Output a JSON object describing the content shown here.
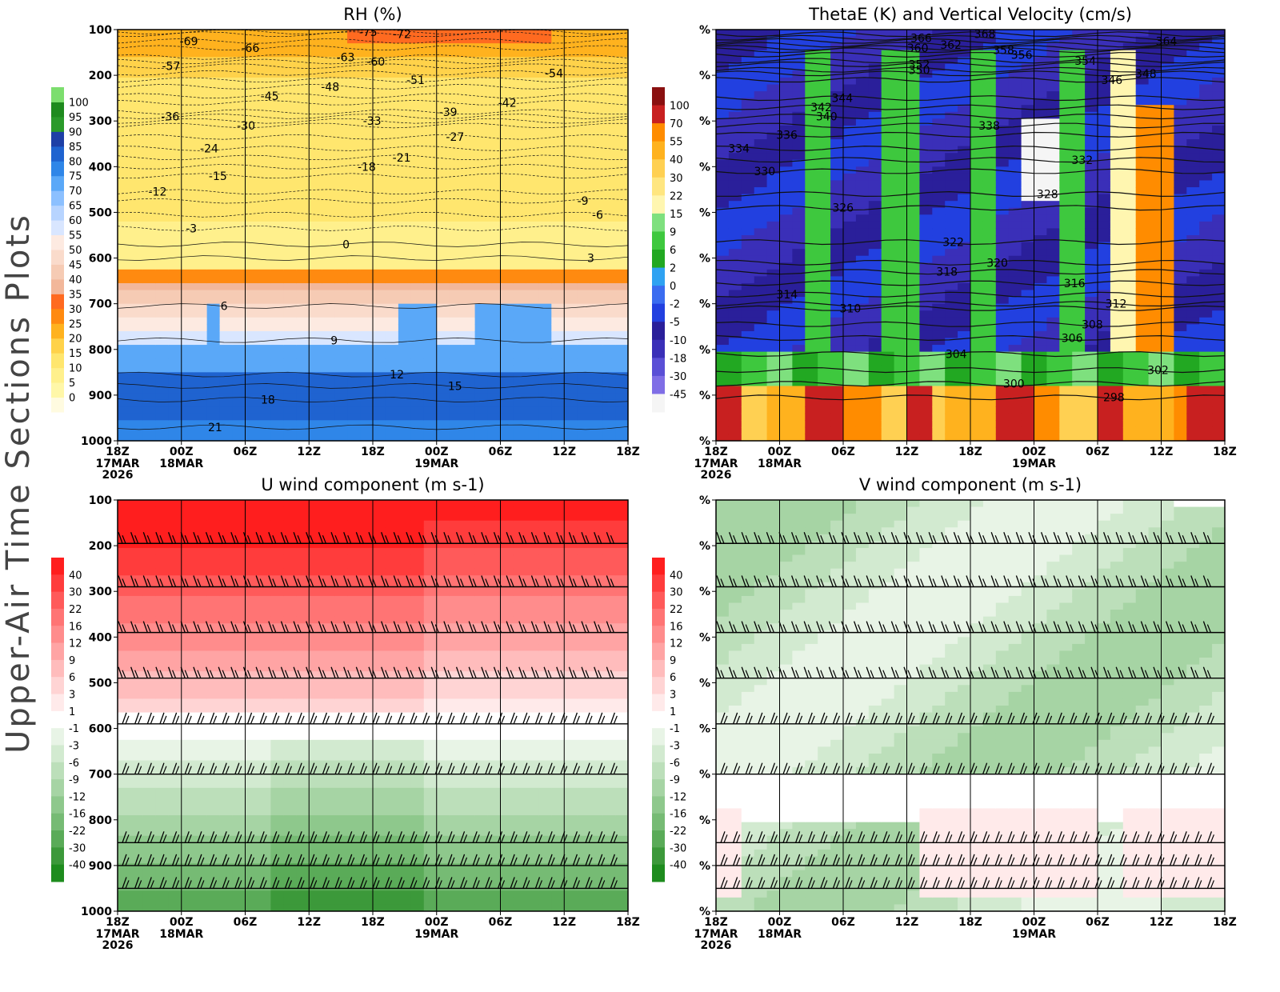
{
  "page": {
    "side_title": "Upper-Air Time Sections Plots"
  },
  "time_axis": {
    "ticks": [
      "18Z",
      "00Z",
      "06Z",
      "12Z",
      "18Z",
      "00Z",
      "06Z",
      "12Z",
      "18Z"
    ],
    "date_labels": [
      {
        "tick_index": 0,
        "lines": [
          "17MAR",
          "2026"
        ]
      },
      {
        "tick_index": 1,
        "lines": [
          "18MAR"
        ]
      },
      {
        "tick_index": 5,
        "lines": [
          "19MAR"
        ]
      }
    ]
  },
  "chart_data": [
    {
      "id": "rh",
      "type": "heatmap",
      "title": "RH (%)",
      "y_ticks": [
        "100",
        "200",
        "300",
        "400",
        "500",
        "600",
        "700",
        "800",
        "900",
        "1000"
      ],
      "ylim": [
        1000,
        100
      ],
      "colorbar": {
        "side": "left",
        "labels": [
          "0",
          "5",
          "10",
          "15",
          "20",
          "25",
          "30",
          "35",
          "40",
          "45",
          "50",
          "55",
          "60",
          "65",
          "70",
          "75",
          "80",
          "85",
          "90",
          "95",
          "100"
        ],
        "colors": [
          "#fffbe0",
          "#fff7a8",
          "#fff08c",
          "#ffe66e",
          "#ffd24a",
          "#ffb21e",
          "#ff8a10",
          "#ff6a20",
          "#f2b79a",
          "#f6cbb4",
          "#fadbcb",
          "#fdeae1",
          "#d9e6ff",
          "#b7d4ff",
          "#8cc0ff",
          "#5aa8f8",
          "#2f86e8",
          "#1f63d0",
          "#1e3fa6",
          "#2a9a2a",
          "#1e8a1e",
          "#7cde6e"
        ]
      },
      "temperature_contours": [
        {
          "label": "-75",
          "pressure": 105
        },
        {
          "label": "-72",
          "pressure": 110
        },
        {
          "label": "-69",
          "pressure": 125
        },
        {
          "label": "-66",
          "pressure": 140
        },
        {
          "label": "-63",
          "pressure": 160
        },
        {
          "label": "-60",
          "pressure": 170
        },
        {
          "label": "-57",
          "pressure": 180
        },
        {
          "label": "-54",
          "pressure": 195
        },
        {
          "label": "-51",
          "pressure": 210
        },
        {
          "label": "-48",
          "pressure": 225
        },
        {
          "label": "-45",
          "pressure": 245
        },
        {
          "label": "-42",
          "pressure": 260
        },
        {
          "label": "-39",
          "pressure": 280
        },
        {
          "label": "-36",
          "pressure": 290
        },
        {
          "label": "-33",
          "pressure": 300
        },
        {
          "label": "-30",
          "pressure": 310
        },
        {
          "label": "-27",
          "pressure": 335
        },
        {
          "label": "-24",
          "pressure": 360
        },
        {
          "label": "-21",
          "pressure": 380
        },
        {
          "label": "-18",
          "pressure": 400
        },
        {
          "label": "-15",
          "pressure": 420
        },
        {
          "label": "-12",
          "pressure": 455
        },
        {
          "label": "-9",
          "pressure": 475
        },
        {
          "label": "-6",
          "pressure": 505
        },
        {
          "label": "-3",
          "pressure": 535
        },
        {
          "label": "0",
          "pressure": 570
        },
        {
          "label": "3",
          "pressure": 600
        },
        {
          "label": "6",
          "pressure": 705
        },
        {
          "label": "9",
          "pressure": 780
        },
        {
          "label": "12",
          "pressure": 855
        },
        {
          "label": "15",
          "pressure": 880
        },
        {
          "label": "18",
          "pressure": 910
        },
        {
          "label": "21",
          "pressure": 970
        }
      ]
    },
    {
      "id": "thetae",
      "type": "heatmap",
      "title": "ThetaE (K) and Vertical Velocity (cm/s)",
      "y_ticks": [
        "%",
        "%",
        "%",
        "%",
        "%",
        "%",
        "%",
        "%",
        "%",
        "%"
      ],
      "colorbar": {
        "side": "left",
        "labels": [
          "-45",
          "-30",
          "-18",
          "-10",
          "-5",
          "-2",
          "0",
          "2",
          "6",
          "9",
          "15",
          "22",
          "30",
          "40",
          "55",
          "70",
          "100"
        ],
        "colors": [
          "#f5f5f5",
          "#7f6ee6",
          "#5a4fd6",
          "#3a2fb8",
          "#2a1f9a",
          "#2240e0",
          "#3a6cf0",
          "#2fa2f2",
          "#22a822",
          "#3ec83e",
          "#7ee07e",
          "#fff6b0",
          "#ffe680",
          "#ffd052",
          "#ffb21e",
          "#ff8c00",
          "#c82020",
          "#8a1010"
        ]
      },
      "thetae_contours": [
        {
          "label": "368",
          "pressure": 110
        },
        {
          "label": "366",
          "pressure": 118
        },
        {
          "label": "364",
          "pressure": 125
        },
        {
          "label": "362",
          "pressure": 133
        },
        {
          "label": "360",
          "pressure": 140
        },
        {
          "label": "358",
          "pressure": 145
        },
        {
          "label": "356",
          "pressure": 155
        },
        {
          "label": "354",
          "pressure": 168
        },
        {
          "label": "352",
          "pressure": 176
        },
        {
          "label": "350",
          "pressure": 188
        },
        {
          "label": "348",
          "pressure": 196
        },
        {
          "label": "346",
          "pressure": 210
        },
        {
          "label": "344",
          "pressure": 250
        },
        {
          "label": "342",
          "pressure": 270
        },
        {
          "label": "340",
          "pressure": 290
        },
        {
          "label": "338",
          "pressure": 310
        },
        {
          "label": "336",
          "pressure": 330
        },
        {
          "label": "334",
          "pressure": 360
        },
        {
          "label": "332",
          "pressure": 385
        },
        {
          "label": "330",
          "pressure": 410
        },
        {
          "label": "328",
          "pressure": 460
        },
        {
          "label": "326",
          "pressure": 490
        },
        {
          "label": "322",
          "pressure": 565
        },
        {
          "label": "320",
          "pressure": 610
        },
        {
          "label": "318",
          "pressure": 630
        },
        {
          "label": "316",
          "pressure": 655
        },
        {
          "label": "314",
          "pressure": 680
        },
        {
          "label": "312",
          "pressure": 700
        },
        {
          "label": "310",
          "pressure": 710
        },
        {
          "label": "308",
          "pressure": 745
        },
        {
          "label": "306",
          "pressure": 775
        },
        {
          "label": "304",
          "pressure": 810
        },
        {
          "label": "302",
          "pressure": 845
        },
        {
          "label": "300",
          "pressure": 875
        },
        {
          "label": "298",
          "pressure": 905
        }
      ]
    },
    {
      "id": "uwind",
      "type": "heatmap",
      "title": "U wind component (m s-1)",
      "y_ticks": [
        "100",
        "200",
        "300",
        "400",
        "500",
        "600",
        "700",
        "800",
        "900",
        "1000"
      ],
      "ylim": [
        1000,
        100
      ],
      "colorbar": {
        "side": "left",
        "labels": [
          "40",
          "30",
          "22",
          "16",
          "12",
          "9",
          "6",
          "3",
          "1",
          "-1",
          "-3",
          "-6",
          "-9",
          "-12",
          "-16",
          "-22",
          "-30",
          "-40"
        ],
        "colors": [
          "#ff1e1e",
          "#ff3c3c",
          "#ff5a5a",
          "#ff7474",
          "#ff8c8c",
          "#ffa4a4",
          "#ffbcbc",
          "#ffd4d4",
          "#ffeaea",
          "#ffffff",
          "#e8f4e6",
          "#d2ead0",
          "#bcdfba",
          "#a6d4a4",
          "#8ec88c",
          "#76bb74",
          "#5aab58",
          "#3c993a",
          "#1e8c1e"
        ]
      },
      "barb_levels": [
        195,
        290,
        390,
        490,
        590,
        700,
        850,
        900,
        950
      ]
    },
    {
      "id": "vwind",
      "type": "heatmap",
      "title": "V wind component (m s-1)",
      "y_ticks": [
        "%",
        "%",
        "%",
        "%",
        "%",
        "%",
        "%",
        "%",
        "%",
        "%"
      ],
      "colorbar": {
        "side": "left",
        "labels": [
          "40",
          "30",
          "22",
          "16",
          "12",
          "9",
          "6",
          "3",
          "1",
          "-1",
          "-3",
          "-6",
          "-9",
          "-12",
          "-16",
          "-22",
          "-30",
          "-40"
        ],
        "colors": [
          "#ff1e1e",
          "#ff3c3c",
          "#ff5a5a",
          "#ff7474",
          "#ff8c8c",
          "#ffa4a4",
          "#ffbcbc",
          "#ffd4d4",
          "#ffeaea",
          "#ffffff",
          "#e8f4e6",
          "#d2ead0",
          "#bcdfba",
          "#a6d4a4",
          "#8ec88c",
          "#76bb74",
          "#5aab58",
          "#3c993a",
          "#1e8c1e"
        ]
      },
      "barb_levels": [
        195,
        290,
        390,
        490,
        590,
        700,
        850,
        900,
        950
      ]
    }
  ]
}
